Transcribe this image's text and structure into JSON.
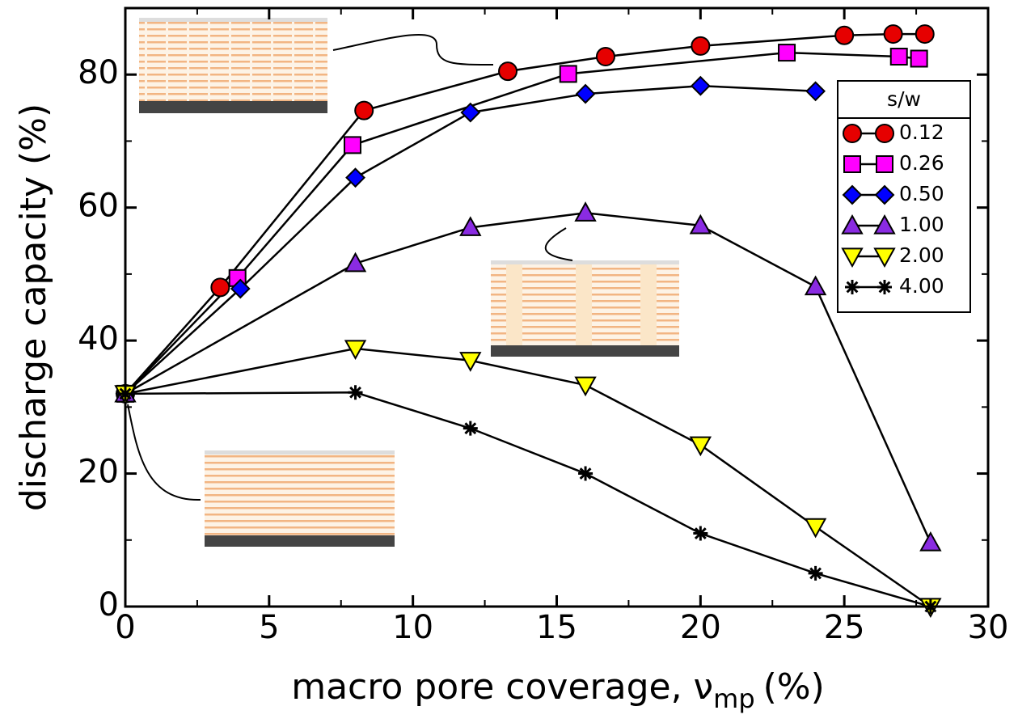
{
  "chart_data": {
    "type": "line",
    "x_label": {
      "text": "macro pore coverage, ν",
      "subscript": "mp",
      "suffix": "(%)"
    },
    "y_label": "discharge capacity (%)",
    "legend_title": "s/w",
    "legend_position": "upper right",
    "xlim": [
      0,
      30
    ],
    "xticks": [
      0,
      5,
      10,
      15,
      20,
      25,
      30
    ],
    "ylim": [
      0,
      90
    ],
    "yticks": [
      0,
      20,
      40,
      60,
      80
    ],
    "series": [
      {
        "name": "0.12",
        "color": "#e60000",
        "marker": "circle",
        "x": [
          0,
          3.3,
          8.3,
          13.3,
          16.7,
          20,
          25,
          26.7,
          27.8
        ],
        "values": [
          32,
          48,
          74.6,
          80.5,
          82.7,
          84.3,
          85.9,
          86.1,
          86.1
        ]
      },
      {
        "name": "0.26",
        "color": "#ff00ff",
        "marker": "square",
        "x": [
          0,
          3.9,
          7.9,
          15.4,
          23,
          26.9,
          27.6
        ],
        "values": [
          32,
          49.4,
          69.4,
          80.1,
          83.3,
          82.7,
          82.4
        ]
      },
      {
        "name": "0.50",
        "color": "#0000ff",
        "marker": "diamond",
        "x": [
          0,
          4,
          8,
          12,
          16,
          20,
          24
        ],
        "values": [
          32,
          47.8,
          64.5,
          74.3,
          77.1,
          78.3,
          77.5
        ]
      },
      {
        "name": "1.00",
        "color": "#8a2be2",
        "marker": "triangle-up",
        "x": [
          0,
          8,
          12,
          16,
          20,
          24,
          28
        ],
        "values": [
          32,
          51.6,
          57,
          59.2,
          57.3,
          48.1,
          9.6
        ]
      },
      {
        "name": "2.00",
        "color": "#ffff00",
        "marker": "triangle-down",
        "x": [
          0,
          8,
          12,
          16,
          20,
          24,
          28
        ],
        "values": [
          32,
          38.8,
          37,
          33.3,
          24.3,
          12,
          0
        ]
      },
      {
        "name": "4.00",
        "color": "#000000",
        "marker": "asterisk",
        "x": [
          0,
          8,
          12,
          16,
          20,
          24,
          28
        ],
        "values": [
          32,
          32.2,
          26.8,
          20,
          11,
          5,
          0
        ]
      }
    ]
  }
}
